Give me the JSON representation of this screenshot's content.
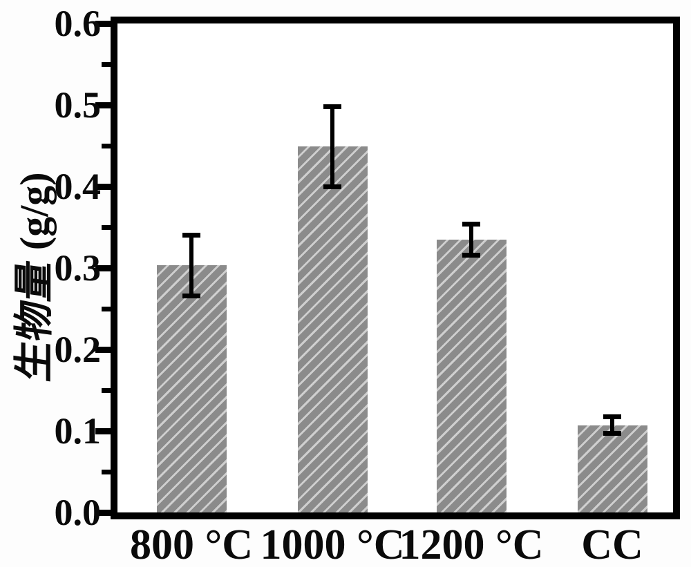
{
  "figure": {
    "background": "#ffffff",
    "frame_color": "#000000"
  },
  "chart_data": {
    "type": "bar",
    "title": "",
    "categories": [
      "800 °C",
      "1000 °C",
      "1200 °C",
      "CC"
    ],
    "values": [
      0.303,
      0.449,
      0.335,
      0.107
    ],
    "errors": [
      0.037,
      0.049,
      0.019,
      0.01
    ],
    "xlabel": "",
    "ylabel": "生物量 (g/g)",
    "ylabel_cjk": "生物量",
    "ylabel_unit": "(g/g)",
    "ylim": [
      0.0,
      0.6
    ],
    "ytick_step": 0.1,
    "ytick_minor_step": 0.05,
    "ytick_labels": [
      "0.0",
      "0.1",
      "0.2",
      "0.3",
      "0.4",
      "0.5",
      "0.6"
    ],
    "grid": false,
    "legend": null,
    "bar_hatch": "/",
    "bar_fill_color": "#8b8b8b",
    "bar_hatch_color": "#cfcfcf",
    "errorbar_color": "#000000",
    "axis_color": "#000000",
    "tick_direction": "out",
    "tick_side": "left"
  }
}
